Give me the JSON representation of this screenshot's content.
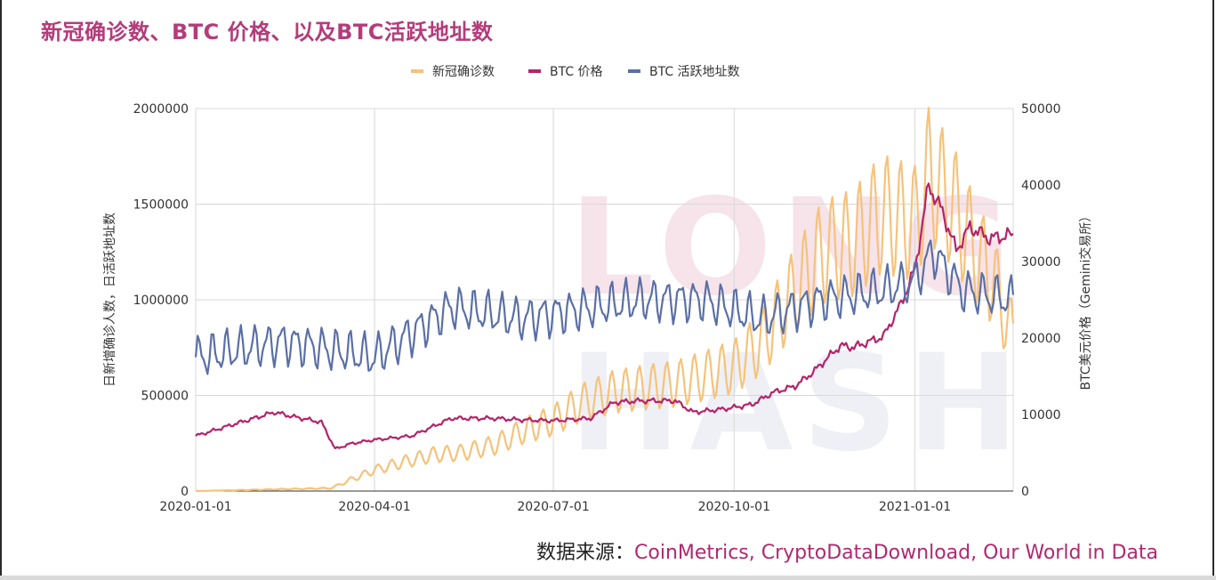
{
  "title": "新冠确诊数、BTC 价格、以及BTC活跃地址数",
  "source_label": "数据来源：",
  "source_value": "CoinMetrics, CryptoDataDownload, Our World in Data",
  "watermark": "LONG HASH",
  "colors": {
    "title": "#b43c7a",
    "covid": "#f6c27a",
    "btc": "#b5236b",
    "addr": "#5a6fa6",
    "grid": "#d8d8d8"
  },
  "chart_data": {
    "type": "line",
    "legend_position": "top-center",
    "grid": true,
    "x_ticks": [
      "2020-01-01",
      "2020-04-01",
      "2020-07-01",
      "2020-10-01",
      "2021-01-01"
    ],
    "x_range": [
      "2020-01-01",
      "2021-02-20"
    ],
    "left_axis": {
      "label": "日新增确诊人数，日活跃地址数",
      "ticks": [
        "0",
        "500000",
        "1000000",
        "1500000",
        "2000000"
      ],
      "range": [
        0,
        2000000
      ]
    },
    "right_axis": {
      "label": "BTC美元价格（Gemini交易所）",
      "ticks": [
        "0",
        "10000",
        "20000",
        "30000",
        "40000",
        "50000"
      ],
      "range": [
        0,
        50000
      ]
    },
    "series": [
      {
        "name": "新冠确诊数",
        "axis": "left",
        "x": [
          "2020-01-01",
          "2020-02-15",
          "2020-03-10",
          "2020-03-20",
          "2020-04-01",
          "2020-04-15",
          "2020-05-01",
          "2020-05-15",
          "2020-06-01",
          "2020-06-15",
          "2020-07-01",
          "2020-07-15",
          "2020-08-01",
          "2020-08-15",
          "2020-09-01",
          "2020-09-15",
          "2020-10-01",
          "2020-10-15",
          "2020-11-01",
          "2020-11-15",
          "2020-12-01",
          "2020-12-15",
          "2021-01-01",
          "2021-01-08",
          "2021-01-20",
          "2021-02-01",
          "2021-02-10",
          "2021-02-20"
        ],
        "values": [
          0,
          10000,
          15000,
          60000,
          110000,
          150000,
          190000,
          200000,
          240000,
          310000,
          370000,
          460000,
          520000,
          540000,
          560000,
          600000,
          650000,
          780000,
          1050000,
          1250000,
          1300000,
          1450000,
          1400000,
          1650000,
          1500000,
          1250000,
          1100000,
          800000
        ]
      },
      {
        "name": "BTC 价格",
        "axis": "right",
        "x": [
          "2020-01-01",
          "2020-01-20",
          "2020-02-10",
          "2020-02-20",
          "2020-03-05",
          "2020-03-12",
          "2020-03-20",
          "2020-04-01",
          "2020-04-20",
          "2020-05-10",
          "2020-06-01",
          "2020-06-15",
          "2020-07-01",
          "2020-07-20",
          "2020-08-01",
          "2020-08-15",
          "2020-09-01",
          "2020-09-10",
          "2020-09-25",
          "2020-10-10",
          "2020-10-21",
          "2020-11-01",
          "2020-11-10",
          "2020-11-24",
          "2020-12-01",
          "2020-12-16",
          "2020-12-25",
          "2021-01-01",
          "2021-01-08",
          "2021-01-15",
          "2021-01-22",
          "2021-01-29",
          "2021-02-08",
          "2021-02-20"
        ],
        "values": [
          7200,
          8700,
          10300,
          9700,
          9000,
          5500,
          6200,
          6700,
          7200,
          9500,
          9500,
          9300,
          9200,
          9500,
          11600,
          11800,
          11800,
          10300,
          10700,
          11300,
          12900,
          13700,
          15500,
          19000,
          18800,
          20200,
          24500,
          29000,
          40000,
          36500,
          31500,
          34500,
          33000,
          33500
        ]
      },
      {
        "name": "BTC 活跃地址数",
        "axis": "left",
        "x": [
          "2020-01-01",
          "2020-02-15",
          "2020-04-01",
          "2020-05-10",
          "2020-06-15",
          "2020-07-15",
          "2020-08-15",
          "2020-09-15",
          "2020-10-15",
          "2020-11-15",
          "2020-12-15",
          "2021-01-01",
          "2021-01-10",
          "2021-01-25",
          "2021-02-20"
        ],
        "values": [
          700000,
          780000,
          700000,
          960000,
          900000,
          950000,
          1000000,
          1000000,
          900000,
          1000000,
          1050000,
          1100000,
          1250000,
          1050000,
          1000000
        ]
      }
    ]
  }
}
